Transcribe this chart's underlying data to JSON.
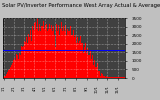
{
  "title": "Solar PV/Inverter Performance West Array Actual & Average Power Output",
  "title_fontsize": 3.8,
  "bg_color": "#c0c0c0",
  "plot_bg_color": "#404040",
  "bar_color": "#ff0000",
  "avg_line_color": "#0000ff",
  "avg_line_value": 0.46,
  "grid_color": "#ffffff",
  "ytick_labels": [
    "0",
    "500",
    "1000",
    "1500",
    "2000",
    "2500",
    "3000",
    "3500"
  ],
  "yticks": [
    0.0,
    0.143,
    0.286,
    0.429,
    0.571,
    0.714,
    0.857,
    1.0
  ],
  "bar_values": [
    0.02,
    0.02,
    0.02,
    0.03,
    0.03,
    0.04,
    0.04,
    0.05,
    0.06,
    0.07,
    0.08,
    0.09,
    0.1,
    0.11,
    0.12,
    0.13,
    0.14,
    0.15,
    0.16,
    0.17,
    0.18,
    0.19,
    0.2,
    0.22,
    0.23,
    0.24,
    0.25,
    0.27,
    0.28,
    0.3,
    0.22,
    0.32,
    0.34,
    0.28,
    0.36,
    0.3,
    0.38,
    0.32,
    0.4,
    0.28,
    0.42,
    0.38,
    0.44,
    0.4,
    0.32,
    0.46,
    0.48,
    0.42,
    0.5,
    0.45,
    0.38,
    0.52,
    0.48,
    0.54,
    0.5,
    0.56,
    0.52,
    0.58,
    0.54,
    0.6,
    0.48,
    0.62,
    0.58,
    0.64,
    0.6,
    0.66,
    0.55,
    0.68,
    0.62,
    0.7,
    0.58,
    0.72,
    0.65,
    0.74,
    0.62,
    0.76,
    0.68,
    0.78,
    0.72,
    0.8,
    0.68,
    0.82,
    0.62,
    0.84,
    0.72,
    0.86,
    0.75,
    0.88,
    0.8,
    0.9,
    0.82,
    0.92,
    0.75,
    0.7,
    0.94,
    0.96,
    0.82,
    0.98,
    0.88,
    1.0,
    0.85,
    0.8,
    0.78,
    0.72,
    0.96,
    0.9,
    0.85,
    0.82,
    0.78,
    0.88,
    0.72,
    0.86,
    0.94,
    0.9,
    0.86,
    0.82,
    1.0,
    0.95,
    0.9,
    0.86,
    0.82,
    0.78,
    0.94,
    0.88,
    0.82,
    0.78,
    0.9,
    0.86,
    0.82,
    0.78,
    0.94,
    0.88,
    0.82,
    0.78,
    0.72,
    0.9,
    0.86,
    0.82,
    0.78,
    0.94,
    0.88,
    0.68,
    0.82,
    0.78,
    0.72,
    0.9,
    0.86,
    0.82,
    0.78,
    0.72,
    0.94,
    0.88,
    0.52,
    0.78,
    0.72,
    0.9,
    0.86,
    0.82,
    0.78,
    0.72,
    0.94,
    0.88,
    0.82,
    0.78,
    0.72,
    0.9,
    0.86,
    0.82,
    0.78,
    0.72,
    0.94,
    0.88,
    0.82,
    0.78,
    0.72,
    0.9,
    0.86,
    0.82,
    0.78,
    0.72,
    0.94,
    0.88,
    0.82,
    0.78,
    0.72,
    0.9,
    0.86,
    0.82,
    0.78,
    0.72,
    0.78,
    0.88,
    0.82,
    0.78,
    0.72,
    0.9,
    0.86,
    0.82,
    0.78,
    0.72,
    0.82,
    0.78,
    0.72,
    0.68,
    0.62,
    0.8,
    0.76,
    0.72,
    0.68,
    0.62,
    0.78,
    0.72,
    0.68,
    0.62,
    0.58,
    0.76,
    0.7,
    0.68,
    0.62,
    0.58,
    0.72,
    0.68,
    0.62,
    0.58,
    0.52,
    0.7,
    0.65,
    0.62,
    0.58,
    0.52,
    0.62,
    0.58,
    0.52,
    0.48,
    0.42,
    0.6,
    0.55,
    0.52,
    0.48,
    0.42,
    0.58,
    0.52,
    0.48,
    0.42,
    0.38,
    0.55,
    0.5,
    0.48,
    0.42,
    0.38,
    0.48,
    0.42,
    0.38,
    0.32,
    0.28,
    0.46,
    0.4,
    0.38,
    0.32,
    0.28,
    0.38,
    0.32,
    0.28,
    0.22,
    0.18,
    0.36,
    0.3,
    0.28,
    0.22,
    0.18,
    0.28,
    0.22,
    0.18,
    0.14,
    0.1,
    0.25,
    0.2,
    0.16,
    0.12,
    0.09,
    0.16,
    0.12,
    0.09,
    0.06,
    0.04,
    0.14,
    0.1,
    0.08,
    0.05,
    0.03,
    0.07,
    0.05,
    0.04,
    0.03,
    0.02,
    0.06,
    0.04,
    0.03,
    0.02,
    0.01,
    0.04,
    0.03,
    0.02,
    0.01,
    0.01,
    0.03,
    0.02,
    0.01,
    0.01,
    0.01,
    0.02,
    0.01,
    0.01,
    0.01,
    0.01,
    0.01,
    0.01,
    0.01,
    0.01,
    0.01,
    0.01,
    0.01,
    0.01,
    0.01,
    0.01,
    0.01,
    0.01,
    0.01,
    0.01,
    0.01,
    0.01,
    0.01,
    0.01,
    0.01,
    0.01,
    0.01,
    0.01,
    0.01,
    0.01,
    0.01,
    0.01,
    0.01,
    0.01,
    0.01,
    0.01,
    0.01,
    0.01,
    0.01,
    0.01,
    0.01,
    0.01,
    0.01,
    0.01,
    0.01,
    0.01
  ],
  "xtick_positions": [
    0,
    31,
    59,
    90,
    120,
    151,
    181,
    212,
    243,
    273,
    304,
    334
  ],
  "xtick_labels": [
    "1/1",
    "2/1",
    "3/1",
    "4/1",
    "5/1",
    "6/1",
    "7/1",
    "8/1",
    "9/1",
    "10/1",
    "11/1",
    "12/1"
  ]
}
